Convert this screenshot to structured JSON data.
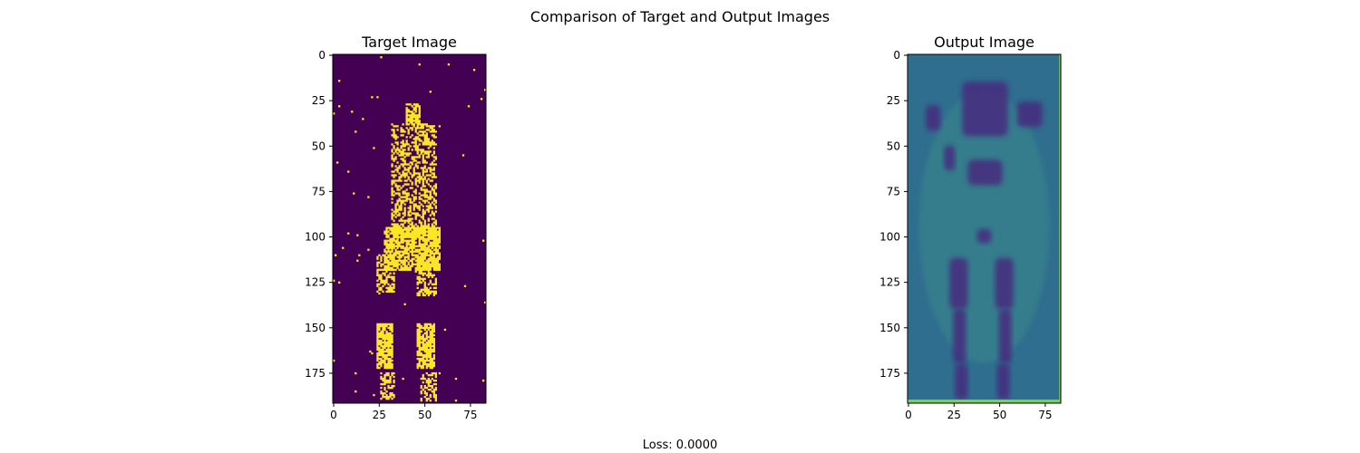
{
  "figure": {
    "suptitle": "Comparison of Target and Output Images",
    "footer": "Loss: 0.0000"
  },
  "chart_data": [
    {
      "type": "heatmap",
      "title": "Target Image",
      "xlabel": "",
      "ylabel": "",
      "image_width": 84,
      "image_height": 192,
      "xlim": [
        -0.5,
        83.5
      ],
      "ylim": [
        191.5,
        -0.5
      ],
      "xticks": [
        0,
        25,
        50,
        75
      ],
      "yticks": [
        0,
        25,
        50,
        75,
        100,
        125,
        150,
        175
      ],
      "colormap": "viridis",
      "background_color": "#440154",
      "highlight_color": "#fde725",
      "description_regions": [
        {
          "name": "head",
          "x": [
            40,
            47
          ],
          "y": [
            27,
            38
          ],
          "density": 0.7
        },
        {
          "name": "torso",
          "x": [
            32,
            56
          ],
          "y": [
            38,
            100
          ],
          "density": 0.45
        },
        {
          "name": "hips",
          "x": [
            28,
            58
          ],
          "y": [
            95,
            118
          ],
          "density": 0.75
        },
        {
          "name": "left-thigh",
          "x": [
            24,
            33
          ],
          "y": [
            110,
            130
          ],
          "density": 0.55
        },
        {
          "name": "right-thigh",
          "x": [
            46,
            56
          ],
          "y": [
            112,
            132
          ],
          "density": 0.55
        },
        {
          "name": "left-calf",
          "x": [
            24,
            32
          ],
          "y": [
            148,
            172
          ],
          "density": 0.8
        },
        {
          "name": "right-calf",
          "x": [
            46,
            55
          ],
          "y": [
            148,
            172
          ],
          "density": 0.8
        },
        {
          "name": "left-foot",
          "x": [
            26,
            33
          ],
          "y": [
            175,
            190
          ],
          "density": 0.5
        },
        {
          "name": "right-foot",
          "x": [
            48,
            56
          ],
          "y": [
            175,
            190
          ],
          "density": 0.5
        }
      ]
    },
    {
      "type": "heatmap",
      "title": "Output Image",
      "xlabel": "",
      "ylabel": "",
      "image_width": 84,
      "image_height": 192,
      "xlim": [
        -0.5,
        83.5
      ],
      "ylim": [
        191.5,
        -0.5
      ],
      "xticks": [
        0,
        25,
        50,
        75
      ],
      "yticks": [
        0,
        25,
        50,
        75,
        100,
        125,
        150,
        175
      ],
      "colormap": "viridis",
      "background_color": "#2f6e8e",
      "dark_color": "#462c7f",
      "edge_color": "#7ad151"
    }
  ]
}
